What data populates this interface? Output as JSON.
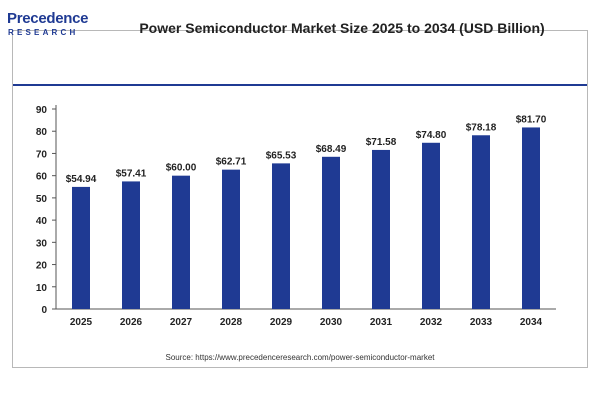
{
  "logo": {
    "word": "Precedence",
    "sub": "RESEARCH"
  },
  "source": "Source: https://www.precedenceresearch.com/power-semiconductor-market",
  "colors": {
    "bar": "#1f3a93",
    "axis": "#555555",
    "text": "#222222",
    "brand": "#1f3a93"
  },
  "chart_data": {
    "type": "bar",
    "title": "Power Semiconductor Market Size 2025 to 2034 (USD Billion)",
    "xlabel": "",
    "ylabel": "",
    "categories": [
      "2025",
      "2026",
      "2027",
      "2028",
      "2029",
      "2030",
      "2031",
      "2032",
      "2033",
      "2034"
    ],
    "values": [
      54.94,
      57.41,
      60.0,
      62.71,
      65.53,
      68.49,
      71.58,
      74.8,
      78.18,
      81.7
    ],
    "data_labels": [
      "$54.94",
      "$57.41",
      "$60.00",
      "$62.71",
      "$65.53",
      "$68.49",
      "$71.58",
      "$74.80",
      "$78.18",
      "$81.70"
    ],
    "ylim": [
      0,
      90
    ],
    "yticks": [
      0,
      10,
      20,
      30,
      40,
      50,
      60,
      70,
      80,
      90
    ],
    "grid": false,
    "legend": "none"
  }
}
